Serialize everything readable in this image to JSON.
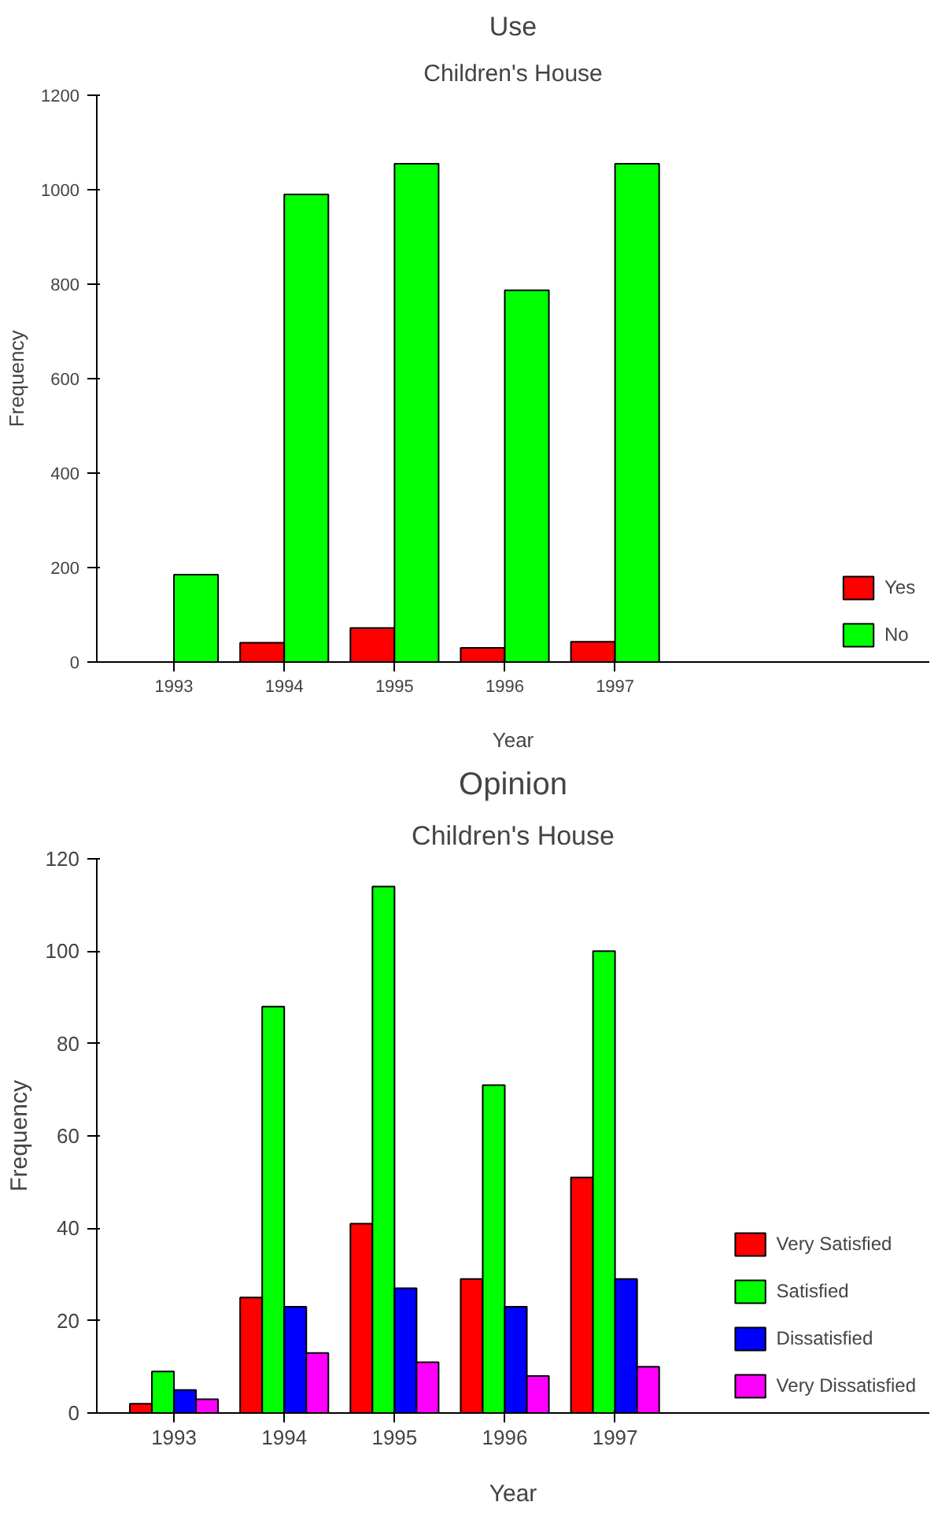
{
  "chart_data": [
    {
      "type": "bar",
      "title": "Use",
      "subtitle": "Children's House",
      "xlabel": "Year",
      "ylabel": "Frequency",
      "categories": [
        "1993",
        "1994",
        "1995",
        "1996",
        "1997"
      ],
      "series": [
        {
          "name": "Yes",
          "color": "#ff0000",
          "values": [
            null,
            41,
            72,
            30,
            43
          ]
        },
        {
          "name": "No",
          "color": "#00ff00",
          "values": [
            185,
            990,
            1055,
            787,
            1055
          ]
        }
      ],
      "ylim": [
        0,
        1200
      ],
      "yticks": [
        0,
        200,
        400,
        600,
        800,
        1000,
        1200
      ],
      "grid": false,
      "legend": "right"
    },
    {
      "type": "bar",
      "title": "Opinion",
      "subtitle": "Children's House",
      "xlabel": "Year",
      "ylabel": "Frequency",
      "categories": [
        "1993",
        "1994",
        "1995",
        "1996",
        "1997"
      ],
      "series": [
        {
          "name": "Very Satisfied",
          "color": "#ff0000",
          "values": [
            2,
            25,
            41,
            29,
            51
          ]
        },
        {
          "name": "Satisfied",
          "color": "#00ff00",
          "values": [
            9,
            88,
            114,
            71,
            100
          ]
        },
        {
          "name": "Dissatisfied",
          "color": "#0000ff",
          "values": [
            5,
            23,
            27,
            23,
            29
          ]
        },
        {
          "name": "Very Dissatisfied",
          "color": "#ff00ff",
          "values": [
            3,
            13,
            11,
            8,
            10
          ]
        }
      ],
      "ylim": [
        0,
        120
      ],
      "yticks": [
        0,
        20,
        40,
        60,
        80,
        100,
        120
      ],
      "grid": false,
      "legend": "right"
    }
  ]
}
